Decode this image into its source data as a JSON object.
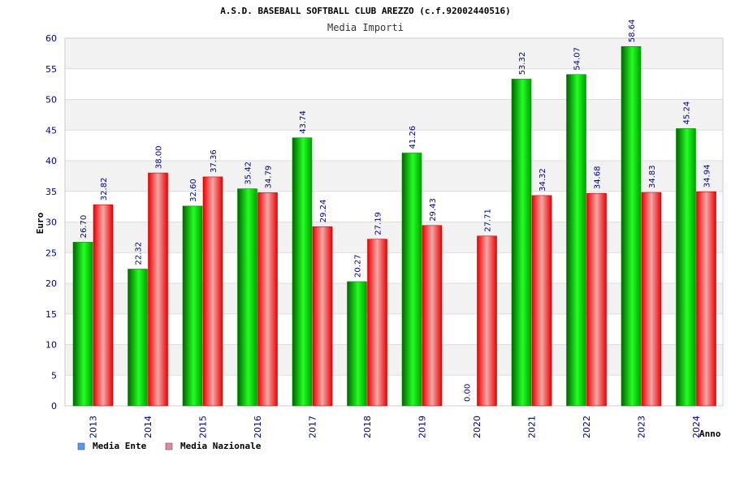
{
  "chart_data": {
    "type": "bar",
    "title": "A.S.D. BASEBALL SOFTBALL CLUB AREZZO (c.f.92002440516)",
    "subtitle": "Media Importi",
    "xlabel": "Anno",
    "ylabel": "Euro",
    "ylim": [
      0,
      60
    ],
    "yticks": [
      0,
      5,
      10,
      15,
      20,
      25,
      30,
      35,
      40,
      45,
      50,
      55,
      60
    ],
    "categories": [
      "2013",
      "2014",
      "2015",
      "2016",
      "2017",
      "2018",
      "2019",
      "2020",
      "2021",
      "2022",
      "2023",
      "2024"
    ],
    "series": [
      {
        "name": "Media Ente",
        "values": [
          26.7,
          22.32,
          32.6,
          35.42,
          43.74,
          20.27,
          41.26,
          0.0,
          53.32,
          54.07,
          58.64,
          45.24
        ],
        "labels": [
          "26.70",
          "22.32",
          "32.60",
          "35.42",
          "43.74",
          "20.27",
          "41.26",
          "0.00",
          "53.32",
          "54.07",
          "58.64",
          "45.24"
        ],
        "color": "#00c000",
        "legend_color": "#5599ee"
      },
      {
        "name": "Media Nazionale",
        "values": [
          32.82,
          38.0,
          37.36,
          34.79,
          29.24,
          27.19,
          29.43,
          27.71,
          34.32,
          34.68,
          34.83,
          34.94
        ],
        "labels": [
          "32.82",
          "38.00",
          "37.36",
          "34.79",
          "29.24",
          "27.19",
          "29.43",
          "27.71",
          "34.32",
          "34.68",
          "34.83",
          "34.94"
        ],
        "color": "#ee1111",
        "legend_color": "#dd88aa"
      }
    ],
    "grid": true,
    "legend_position": "bottom-left"
  }
}
